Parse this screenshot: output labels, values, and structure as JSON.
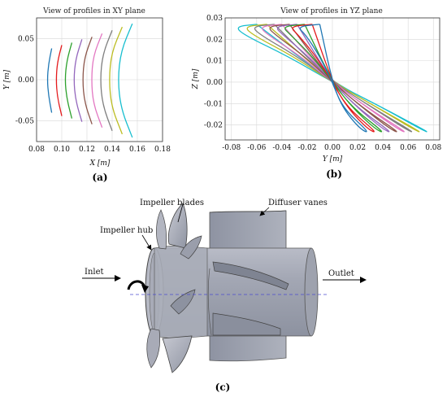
{
  "chart_data": [
    {
      "type": "line",
      "title": "View of profiles in XY plane",
      "xlabel": "X [m]",
      "ylabel": "Y [m]",
      "xlim": [
        0.08,
        0.18
      ],
      "ylim": [
        -0.075,
        0.075
      ],
      "xticks": [
        "0.08",
        "0.10",
        "0.12",
        "0.14",
        "0.16",
        "0.18"
      ],
      "yticks": [
        "0.05",
        "0.00",
        "-0.05"
      ],
      "grid": true,
      "series": [
        {
          "color": "#1f77b4",
          "x": [
            0.092,
            0.0895,
            0.0885,
            0.0895,
            0.092
          ],
          "y": [
            0.038,
            0.019,
            0.0,
            -0.019,
            -0.04
          ]
        },
        {
          "color": "#e41a1c",
          "x": [
            0.1,
            0.0965,
            0.0955,
            0.0965,
            0.1
          ],
          "y": [
            0.042,
            0.021,
            0.0,
            -0.021,
            -0.044
          ]
        },
        {
          "color": "#2ca02c",
          "x": [
            0.108,
            0.104,
            0.1025,
            0.104,
            0.108
          ],
          "y": [
            0.045,
            0.023,
            0.0,
            -0.023,
            -0.047
          ]
        },
        {
          "color": "#9467bd",
          "x": [
            0.116,
            0.111,
            0.1095,
            0.111,
            0.116
          ],
          "y": [
            0.049,
            0.025,
            0.0,
            -0.025,
            -0.051
          ]
        },
        {
          "color": "#8c564b",
          "x": [
            0.124,
            0.118,
            0.1165,
            0.118,
            0.124
          ],
          "y": [
            0.052,
            0.027,
            0.0,
            -0.027,
            -0.054
          ]
        },
        {
          "color": "#e377c2",
          "x": [
            0.132,
            0.125,
            0.1235,
            0.125,
            0.132
          ],
          "y": [
            0.056,
            0.029,
            0.0,
            -0.029,
            -0.058
          ]
        },
        {
          "color": "#7f7f7f",
          "x": [
            0.14,
            0.1325,
            0.1305,
            0.1325,
            0.14
          ],
          "y": [
            0.06,
            0.031,
            0.0,
            -0.031,
            -0.062
          ]
        },
        {
          "color": "#bcbd22",
          "x": [
            0.148,
            0.1395,
            0.1375,
            0.1395,
            0.148
          ],
          "y": [
            0.064,
            0.033,
            0.0,
            -0.033,
            -0.066
          ]
        },
        {
          "color": "#17becf",
          "x": [
            0.156,
            0.147,
            0.1445,
            0.147,
            0.156
          ],
          "y": [
            0.068,
            0.035,
            0.0,
            -0.035,
            -0.07
          ]
        }
      ]
    },
    {
      "type": "line",
      "title": "View of profiles in YZ plane",
      "xlabel": "Y [m]",
      "ylabel": "Z [m]",
      "xlim": [
        -0.085,
        0.085
      ],
      "ylim": [
        -0.027,
        0.03
      ],
      "xticks": [
        "-0.08",
        "-0.06",
        "-0.04",
        "-0.02",
        "0.00",
        "0.02",
        "0.04",
        "0.06",
        "0.08"
      ],
      "yticks": [
        "0.03",
        "0.02",
        "0.01",
        "0.00",
        "-0.01",
        "-0.02"
      ],
      "grid": true,
      "series": [
        {
          "color": "#17becf",
          "x": [
            -0.06,
            -0.077,
            -0.07,
            -0.035,
            0.0,
            0.04,
            0.078,
            0.07,
            0.04,
            0.0,
            -0.06
          ],
          "y": [
            0.027,
            0.026,
            0.022,
            0.012,
            0.0,
            -0.012,
            -0.024,
            -0.022,
            -0.012,
            0.0,
            0.027
          ]
        },
        {
          "color": "#bcbd22",
          "x": [
            -0.052,
            -0.07,
            -0.063,
            -0.031,
            0.0,
            0.036,
            0.072,
            0.064,
            0.036,
            0.0,
            -0.052
          ],
          "y": [
            0.027,
            0.026,
            0.022,
            0.012,
            0.0,
            -0.012,
            -0.024,
            -0.022,
            -0.012,
            0.0,
            0.027
          ]
        },
        {
          "color": "#7f7f7f",
          "x": [
            -0.046,
            -0.064,
            -0.057,
            -0.028,
            0.0,
            0.032,
            0.066,
            0.058,
            0.032,
            0.0,
            -0.046
          ],
          "y": [
            0.027,
            0.026,
            0.022,
            0.012,
            0.0,
            -0.012,
            -0.024,
            -0.022,
            -0.012,
            0.0,
            0.027
          ]
        },
        {
          "color": "#e377c2",
          "x": [
            -0.04,
            -0.058,
            -0.051,
            -0.025,
            0.0,
            0.028,
            0.06,
            0.052,
            0.028,
            0.0,
            -0.04
          ],
          "y": [
            0.027,
            0.026,
            0.022,
            0.012,
            0.0,
            -0.012,
            -0.024,
            -0.022,
            -0.012,
            0.0,
            0.027
          ]
        },
        {
          "color": "#8c564b",
          "x": [
            -0.034,
            -0.052,
            -0.045,
            -0.022,
            0.0,
            0.024,
            0.054,
            0.046,
            0.024,
            0.0,
            -0.034
          ],
          "y": [
            0.027,
            0.026,
            0.022,
            0.012,
            0.0,
            -0.012,
            -0.024,
            -0.022,
            -0.012,
            0.0,
            0.027
          ]
        },
        {
          "color": "#9467bd",
          "x": [
            -0.028,
            -0.046,
            -0.039,
            -0.019,
            0.0,
            0.02,
            0.048,
            0.04,
            0.02,
            0.0,
            -0.028
          ],
          "y": [
            0.027,
            0.026,
            0.022,
            0.012,
            0.0,
            -0.012,
            -0.024,
            -0.022,
            -0.012,
            0.0,
            0.027
          ]
        },
        {
          "color": "#2ca02c",
          "x": [
            -0.022,
            -0.04,
            -0.033,
            -0.016,
            0.0,
            0.016,
            0.042,
            0.034,
            0.016,
            0.0,
            -0.022
          ],
          "y": [
            0.027,
            0.026,
            0.022,
            0.012,
            0.0,
            -0.012,
            -0.024,
            -0.022,
            -0.012,
            0.0,
            0.027
          ]
        },
        {
          "color": "#e41a1c",
          "x": [
            -0.016,
            -0.034,
            -0.027,
            -0.013,
            0.0,
            0.012,
            0.036,
            0.028,
            0.012,
            0.0,
            -0.016
          ],
          "y": [
            0.027,
            0.026,
            0.022,
            0.012,
            0.0,
            -0.012,
            -0.024,
            -0.022,
            -0.012,
            0.0,
            0.027
          ]
        },
        {
          "color": "#1f77b4",
          "x": [
            -0.01,
            -0.028,
            -0.021,
            -0.01,
            0.0,
            0.008,
            0.03,
            0.022,
            0.008,
            0.0,
            -0.01
          ],
          "y": [
            0.027,
            0.026,
            0.022,
            0.012,
            0.0,
            -0.012,
            -0.024,
            -0.022,
            -0.012,
            0.0,
            0.027
          ]
        }
      ]
    }
  ],
  "captions": {
    "a": "(a)",
    "b": "(b)",
    "c": "(c)"
  },
  "labels": {
    "impeller_blades": "Impeller blades",
    "diffuser_vanes": "Diffuser vanes",
    "impeller_hub": "Impeller hub",
    "inlet": "Inlet",
    "outlet": "Outlet"
  }
}
